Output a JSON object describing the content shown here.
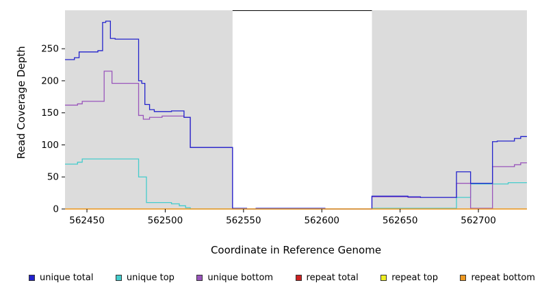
{
  "figure": {
    "x_axis_label": "Coordinate in Reference Genome",
    "y_axis_label": "Read Coverage Depth"
  },
  "chart_data": {
    "type": "line",
    "subtype": "step-coverage-plot",
    "title": "",
    "xlabel": "Coordinate in Reference Genome",
    "ylabel": "Read Coverage Depth",
    "x_range": [
      562436,
      562731
    ],
    "y_range": [
      0,
      310
    ],
    "x_ticks": [
      562450,
      562500,
      562550,
      562600,
      562650,
      562700
    ],
    "y_ticks": [
      0,
      50,
      100,
      150,
      200,
      250
    ],
    "grid": false,
    "legend_position": "bottom",
    "colors": {
      "plot_bg": "#dcdcdc",
      "gap_bg": "#ffffff",
      "axis": "#000000"
    },
    "gap_region": [
      562543,
      562632
    ],
    "shaded_regions": [
      [
        562436,
        562543
      ],
      [
        562632,
        562731
      ]
    ],
    "series": [
      {
        "id": "unique-top",
        "name": "unique top",
        "color": "#44cccc",
        "points": [
          [
            562436,
            70
          ],
          [
            562444,
            73
          ],
          [
            562447,
            78
          ],
          [
            562483,
            50
          ],
          [
            562488,
            10
          ],
          [
            562504,
            8
          ],
          [
            562509,
            5
          ],
          [
            562513,
            2
          ],
          [
            562516,
            0
          ],
          [
            562632,
            1
          ],
          [
            562686,
            18
          ],
          [
            562695,
            39
          ],
          [
            562719,
            41
          ]
        ]
      },
      {
        "id": "unique-bottom",
        "name": "unique bottom",
        "color": "#9955bb",
        "points": [
          [
            562436,
            162
          ],
          [
            562444,
            164
          ],
          [
            562447,
            168
          ],
          [
            562461,
            215
          ],
          [
            562466,
            196
          ],
          [
            562483,
            146
          ],
          [
            562486,
            140
          ],
          [
            562490,
            143
          ],
          [
            562498,
            145
          ],
          [
            562512,
            143
          ],
          [
            562516,
            96
          ],
          [
            562543,
            0
          ],
          [
            562632,
            19
          ],
          [
            562655,
            18
          ],
          [
            562686,
            40
          ],
          [
            562695,
            1
          ],
          [
            562709,
            66
          ],
          [
            562723,
            69
          ],
          [
            562727,
            72
          ]
        ]
      },
      {
        "id": "unique-total",
        "name": "unique total",
        "color": "#2222cc",
        "points": [
          [
            562436,
            233
          ],
          [
            562442,
            236
          ],
          [
            562445,
            245
          ],
          [
            562457,
            247
          ],
          [
            562460,
            291
          ],
          [
            562462,
            293
          ],
          [
            562465,
            266
          ],
          [
            562468,
            265
          ],
          [
            562483,
            200
          ],
          [
            562485,
            196
          ],
          [
            562487,
            163
          ],
          [
            562490,
            155
          ],
          [
            562493,
            152
          ],
          [
            562504,
            153
          ],
          [
            562512,
            143
          ],
          [
            562516,
            96
          ],
          [
            562543,
            1
          ],
          [
            562552,
            0
          ],
          [
            562558,
            1
          ],
          [
            562602,
            0
          ],
          [
            562632,
            20
          ],
          [
            562655,
            19
          ],
          [
            562663,
            18
          ],
          [
            562686,
            58
          ],
          [
            562695,
            40
          ],
          [
            562709,
            105
          ],
          [
            562712,
            106
          ],
          [
            562723,
            110
          ],
          [
            562727,
            113
          ]
        ]
      },
      {
        "id": "repeat-total",
        "name": "repeat total",
        "color": "#cc2222",
        "points": [
          [
            562436,
            0
          ]
        ]
      },
      {
        "id": "repeat-top",
        "name": "repeat top",
        "color": "#eeee22",
        "points": [
          [
            562436,
            0
          ]
        ]
      },
      {
        "id": "repeat-bottom",
        "name": "repeat bottom",
        "color": "#ee9922",
        "points": [
          [
            562436,
            0
          ]
        ]
      }
    ],
    "legend": [
      {
        "label": "unique total",
        "color": "#2222cc"
      },
      {
        "label": "unique top",
        "color": "#44cccc"
      },
      {
        "label": "unique bottom",
        "color": "#9955bb"
      },
      {
        "label": "repeat total",
        "color": "#cc2222"
      },
      {
        "label": "repeat top",
        "color": "#eeee22"
      },
      {
        "label": "repeat bottom",
        "color": "#ee9922"
      }
    ]
  }
}
